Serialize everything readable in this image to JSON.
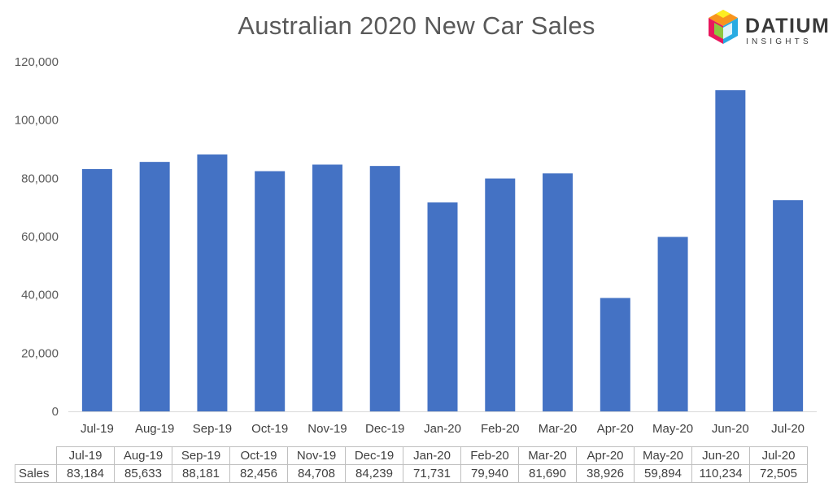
{
  "chart_data": {
    "type": "bar",
    "title": "Australian 2020 New Car Sales",
    "categories": [
      "Jul-19",
      "Aug-19",
      "Sep-19",
      "Oct-19",
      "Nov-19",
      "Dec-19",
      "Jan-20",
      "Feb-20",
      "Mar-20",
      "Apr-20",
      "May-20",
      "Jun-20",
      "Jul-20"
    ],
    "series": [
      {
        "name": "Sales",
        "values": [
          83184,
          85633,
          88181,
          82456,
          84708,
          84239,
          71731,
          79940,
          81690,
          38926,
          59894,
          110234,
          72505
        ]
      }
    ],
    "ylim": [
      0,
      120000
    ],
    "yticks": [
      "0",
      "20,000",
      "40,000",
      "60,000",
      "80,000",
      "100,000",
      "120,000"
    ],
    "grid": false,
    "bar_color": "#4472C4"
  },
  "logo": {
    "name": "DATIUM",
    "sub": "INSIGHTS"
  },
  "table": {
    "row_label": "Sales",
    "values": [
      "83,184",
      "85,633",
      "88,181",
      "82,456",
      "84,708",
      "84,239",
      "71,731",
      "79,940",
      "81,690",
      "38,926",
      "59,894",
      "110,234",
      "72,505"
    ]
  }
}
